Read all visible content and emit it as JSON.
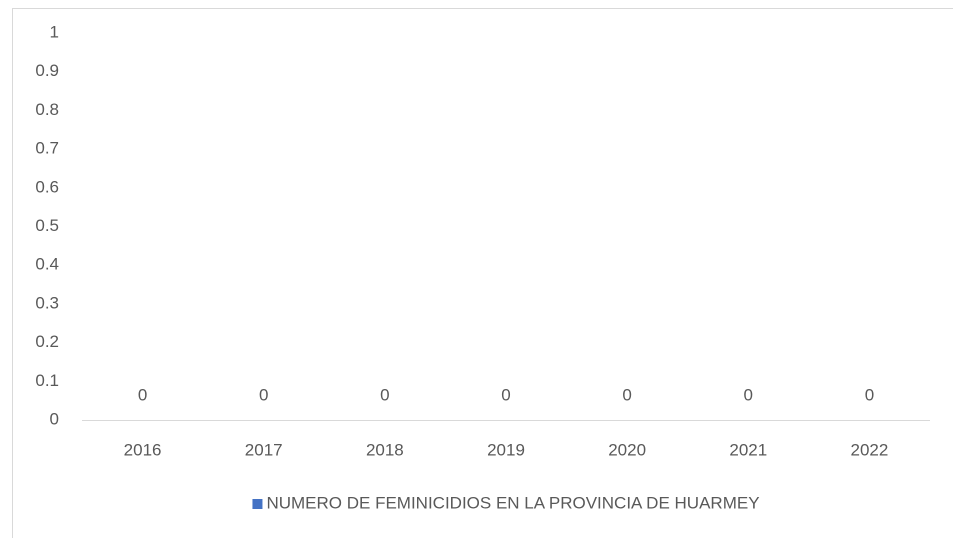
{
  "chart_data": {
    "type": "bar",
    "categories": [
      "2016",
      "2017",
      "2018",
      "2019",
      "2020",
      "2021",
      "2022"
    ],
    "series": [
      {
        "name": "NUMERO DE FEMINICIDIOS EN LA PROVINCIA DE HUARMEY",
        "color": "#4472c4",
        "values": [
          0,
          0,
          0,
          0,
          0,
          0,
          0
        ]
      }
    ],
    "ylim": [
      0,
      1
    ],
    "yticks": [
      0,
      0.1,
      0.2,
      0.3,
      0.4,
      0.5,
      0.6,
      0.7,
      0.8,
      0.9,
      1
    ],
    "grid": false,
    "legend": "bottom"
  }
}
